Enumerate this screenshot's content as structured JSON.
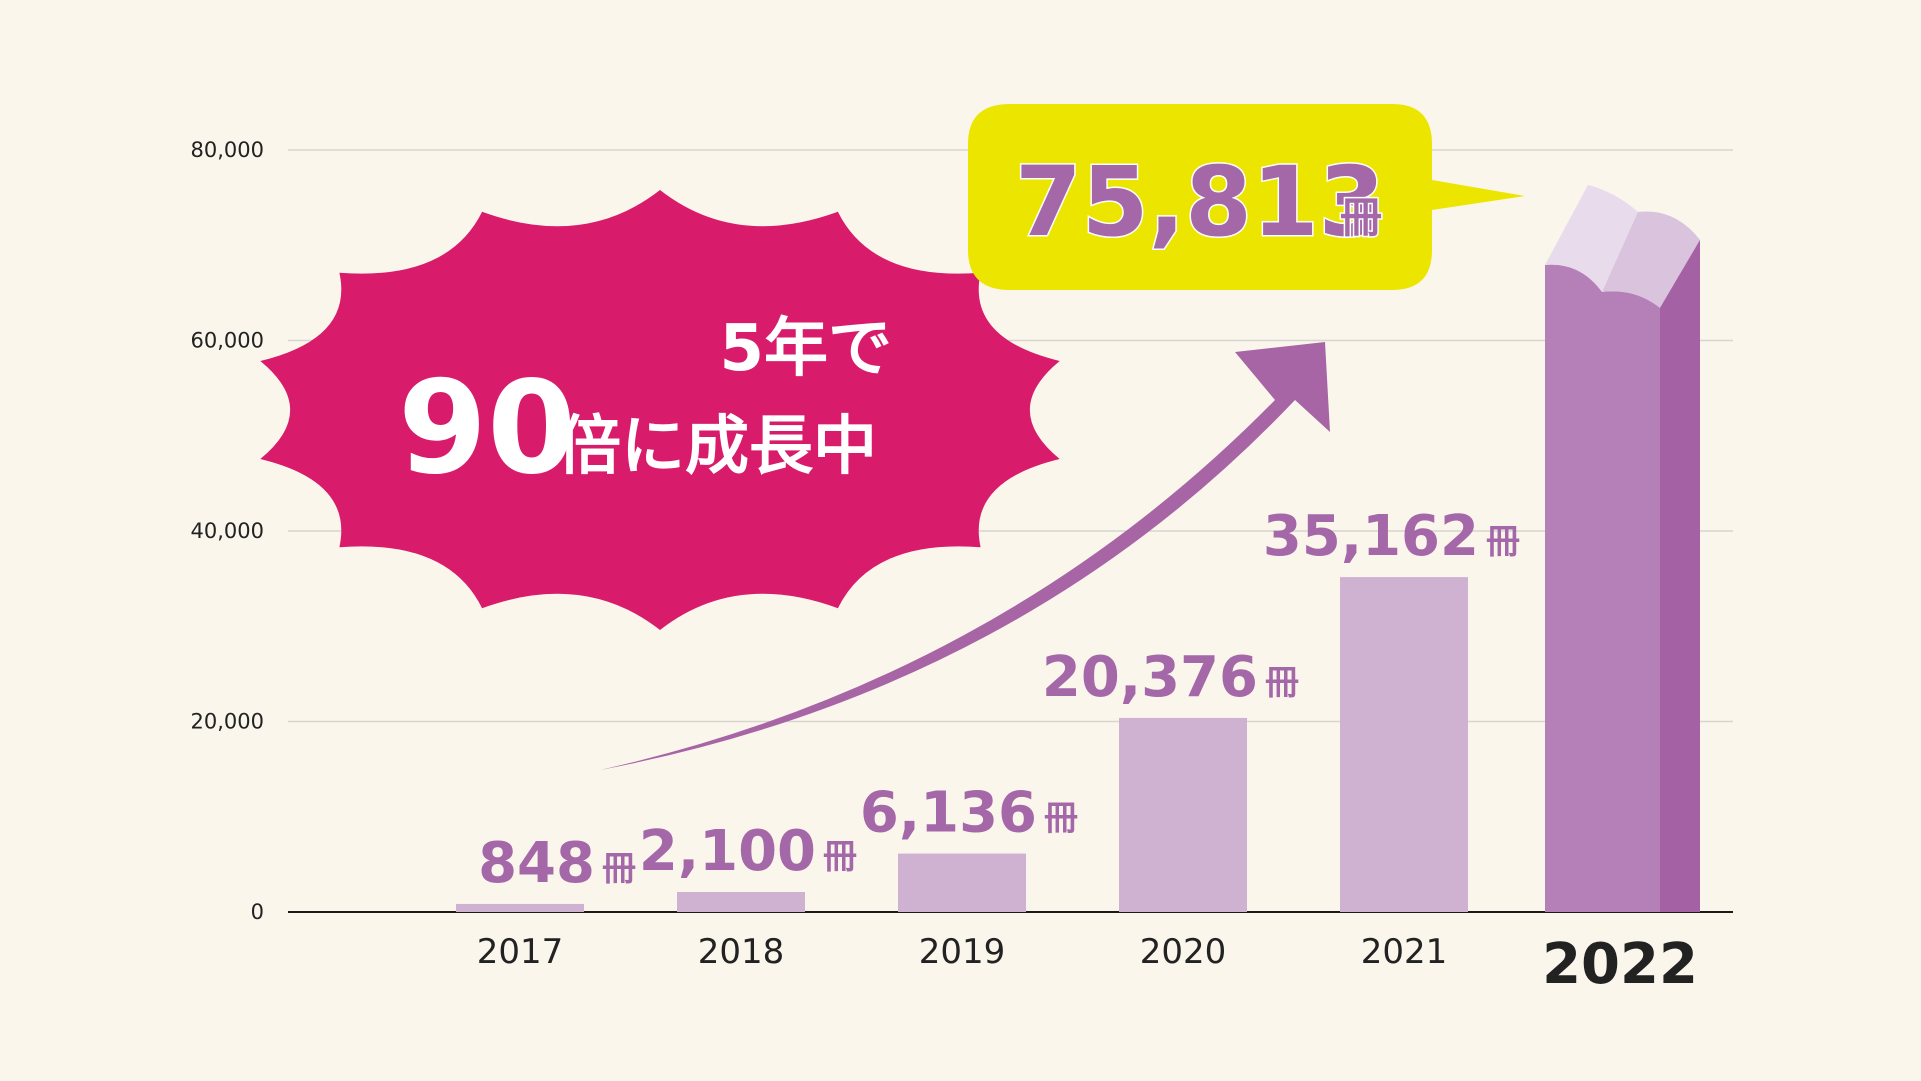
{
  "chart_data": {
    "type": "bar",
    "categories": [
      "2017",
      "2018",
      "2019",
      "2020",
      "2021",
      "2022"
    ],
    "values": [
      848,
      2100,
      6136,
      20376,
      35162,
      75813
    ],
    "value_labels": [
      "848",
      "2,100",
      "6,136",
      "20,376",
      "35,162",
      "75,813"
    ],
    "unit": "冊",
    "yticks": [
      "0",
      "20,000",
      "40,000",
      "60,000",
      "80,000"
    ],
    "ylim": [
      0,
      80000
    ],
    "grid": true,
    "highlight_category": "2022",
    "callout": {
      "line1": "5年で",
      "number": "90",
      "line2": "倍に成長中"
    }
  },
  "colors": {
    "background": "#fbf6ec",
    "bar": "#cfb2d2",
    "book_front": "#b580b8",
    "book_side": "#a462a4",
    "book_pages": "#e8dcec",
    "book_pages_side": "#d9c3dd",
    "value_text": "#a468a8",
    "burst": "#d81b6a",
    "bubble": "#ece500",
    "arrow": "#a765a5",
    "grid": "#d6d6cf",
    "axis_text": "#222222"
  }
}
